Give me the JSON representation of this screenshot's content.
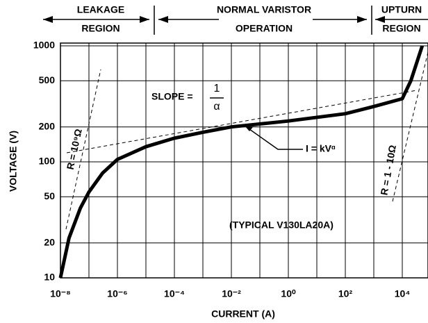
{
  "chart_data": {
    "type": "line",
    "xlabel": "CURRENT (A)",
    "ylabel": "VOLTAGE (V)",
    "xscale": "log",
    "yscale": "log",
    "grid": true,
    "xlim": [
      1e-08,
      100000
    ],
    "ylim": [
      10,
      1000
    ],
    "xticks": [
      {
        "value": 1e-08,
        "label": "10⁻⁸"
      },
      {
        "value": 1e-06,
        "label": "10⁻⁶"
      },
      {
        "value": 0.0001,
        "label": "10⁻⁴"
      },
      {
        "value": 0.01,
        "label": "10⁻²"
      },
      {
        "value": 1,
        "label": "10⁰"
      },
      {
        "value": 100,
        "label": "10²"
      },
      {
        "value": 10000,
        "label": "10⁴"
      }
    ],
    "yticks": [
      10,
      20,
      50,
      100,
      200,
      500,
      1000
    ],
    "series": [
      {
        "name": "V130LA20A",
        "color": "#000000",
        "x": [
          1e-08,
          2e-08,
          5e-08,
          1e-07,
          3e-07,
          1e-06,
          1e-05,
          0.0001,
          0.001,
          0.01,
          1,
          100,
          1000,
          10000,
          20000,
          50000
        ],
        "values": [
          10,
          22,
          40,
          55,
          80,
          105,
          135,
          160,
          180,
          200,
          225,
          260,
          300,
          350,
          500,
          1000
        ]
      }
    ],
    "annotations": {
      "leakage": [
        "LEAKAGE",
        "REGION"
      ],
      "normal": [
        "NORMAL VARISTOR",
        "OPERATION"
      ],
      "upturn": [
        "UPTURN",
        "REGION"
      ],
      "slope": "SLOPE =",
      "slope_num": "1",
      "slope_den": "α",
      "law": "I = kVᵅ",
      "r_low": "R = 10⁹Ω",
      "r_high": "R = 1 - 10Ω",
      "typical": "(TYPICAL V130LA20A)"
    }
  }
}
